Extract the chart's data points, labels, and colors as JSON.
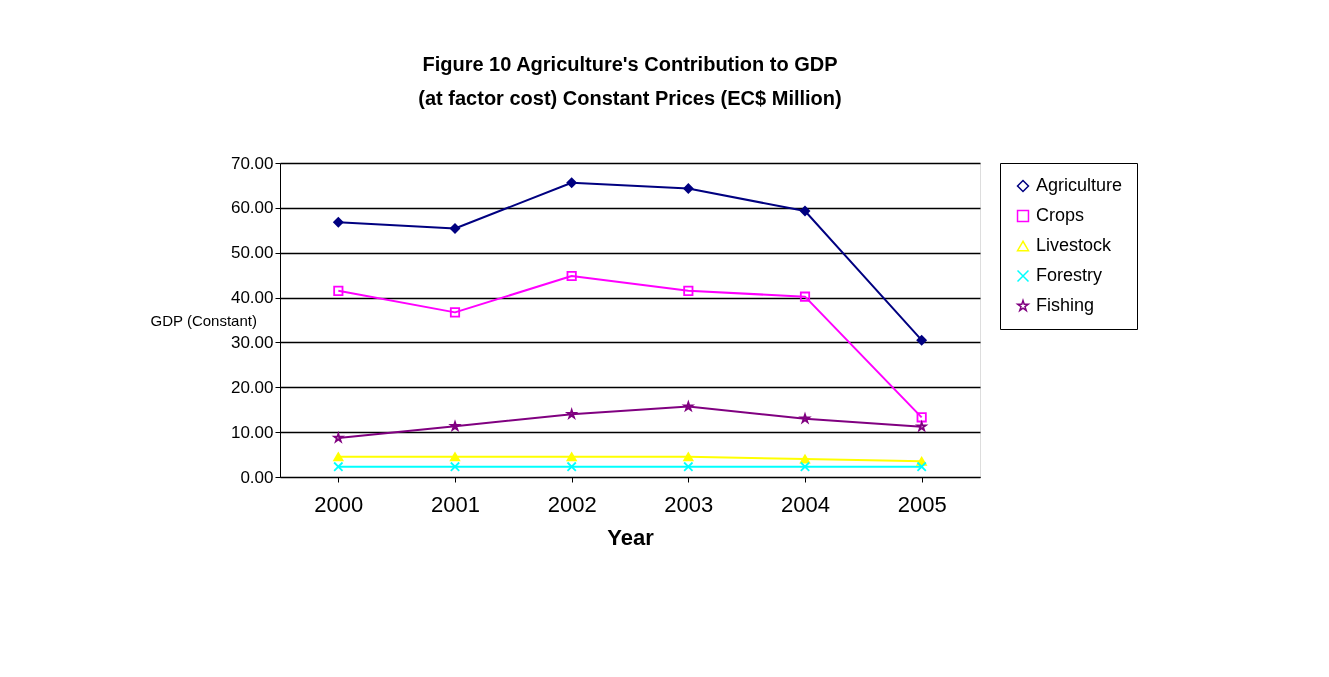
{
  "chart_data": {
    "type": "line",
    "title": "Figure 10   Agriculture's Contribution to GDP (at factor cost) Constant Prices (EC$ Million)",
    "xlabel": "Year",
    "ylabel": "GDP (Constant)",
    "categories": [
      "2000",
      "2001",
      "2002",
      "2003",
      "2004",
      "2005"
    ],
    "ylim": [
      0,
      70
    ],
    "yticks": [
      {
        "value": 0,
        "label": "0.00"
      },
      {
        "value": 10,
        "label": "10.00"
      },
      {
        "value": 20,
        "label": "20.00"
      },
      {
        "value": 30,
        "label": "30.00"
      },
      {
        "value": 40,
        "label": "40.00"
      },
      {
        "value": 50,
        "label": "50.00"
      },
      {
        "value": 60,
        "label": "60.00"
      },
      {
        "value": 70,
        "label": "70.00"
      }
    ],
    "grid": "y",
    "legend": "right",
    "series": [
      {
        "name": "Agriculture",
        "color": "#000080",
        "marker": "diamond",
        "values": [
          56.8,
          55.4,
          65.6,
          64.3,
          59.3,
          30.5
        ]
      },
      {
        "name": "Crops",
        "color": "#ff00ff",
        "marker": "square",
        "values": [
          41.5,
          36.7,
          44.8,
          41.5,
          40.2,
          13.3
        ]
      },
      {
        "name": "Livestock",
        "color": "#ffff00",
        "marker": "triangle",
        "values": [
          4.5,
          4.5,
          4.5,
          4.5,
          4.0,
          3.5
        ]
      },
      {
        "name": "Forestry",
        "color": "#00ffff",
        "marker": "cross",
        "values": [
          2.3,
          2.3,
          2.3,
          2.3,
          2.3,
          2.3
        ]
      },
      {
        "name": "Fishing",
        "color": "#800080",
        "marker": "star",
        "values": [
          8.7,
          11.3,
          14.0,
          15.7,
          13.0,
          11.2
        ]
      }
    ]
  }
}
